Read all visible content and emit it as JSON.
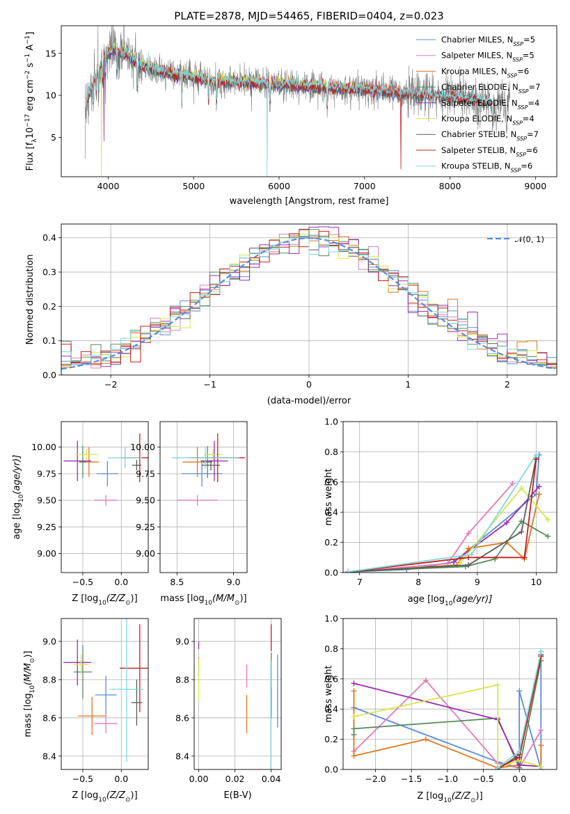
{
  "colors": {
    "Chabrier MILES": "#5b8bd9",
    "Salpeter MILES": "#e07bb8",
    "Kroupa MILES": "#e0761f",
    "Chabrier ELODIE": "#568a5a",
    "Salpeter ELODIE": "#9b2cb0",
    "Kroupa ELODIE": "#d6e64a",
    "Chabrier STELIB": "#5a5a5a",
    "Salpeter STELIB": "#c41e1e",
    "Kroupa STELIB": "#7fd8dc",
    "grid": "#b0b0b0",
    "normal_curve": "#5b8bd9"
  },
  "chart_data": [
    {
      "id": "spectrum",
      "type": "line",
      "title": "PLATE=2878, MJD=54465, FIBERID=0404, z=0.023",
      "xlabel": "wavelength [Angstrom, rest frame]",
      "ylabel": "Flux [f",
      "ylabel_full": "Flux [fλ10⁻¹⁷ erg cm⁻² s⁻¹ A⁻¹]",
      "xlim": [
        3450,
        9250
      ],
      "ylim": [
        0.3,
        18.3
      ],
      "xticks": [
        4000,
        5000,
        6000,
        7000,
        8000,
        9000
      ],
      "yticks": [
        5,
        10,
        15
      ],
      "legend_position": "top-right",
      "legend": [
        {
          "label": "Chabrier MILES, N",
          "sub": "SSP",
          "eq": "=5"
        },
        {
          "label": "Salpeter MILES, N",
          "sub": "SSP",
          "eq": "=5"
        },
        {
          "label": "Kroupa MILES, N",
          "sub": "SSP",
          "eq": "=6"
        },
        {
          "label": "Chabrier ELODIE, N",
          "sub": "SSP",
          "eq": "=7"
        },
        {
          "label": "Salpeter ELODIE, N",
          "sub": "SSP",
          "eq": "=4"
        },
        {
          "label": "Kroupa ELODIE, N",
          "sub": "SSP",
          "eq": "=4"
        },
        {
          "label": "Chabrier STELIB, N",
          "sub": "SSP",
          "eq": "=7"
        },
        {
          "label": "Salpeter STELIB, N",
          "sub": "SSP",
          "eq": "=6"
        },
        {
          "label": "Kroupa STELIB, N",
          "sub": "SSP",
          "eq": "=6"
        }
      ],
      "continuum": [
        [
          3750,
          9.5
        ],
        [
          3850,
          12.5
        ],
        [
          3950,
          14.5
        ],
        [
          4050,
          15.5
        ],
        [
          4200,
          15.0
        ],
        [
          4400,
          13.5
        ],
        [
          4600,
          13.0
        ],
        [
          4800,
          12.5
        ],
        [
          5000,
          12.2
        ],
        [
          5200,
          11.8
        ],
        [
          5500,
          11.6
        ],
        [
          6000,
          11.4
        ],
        [
          6500,
          11.0
        ],
        [
          7000,
          10.7
        ],
        [
          7500,
          10.3
        ],
        [
          8000,
          9.8
        ],
        [
          8500,
          9.2
        ],
        [
          8700,
          9.0
        ]
      ],
      "observed_range": [
        3730,
        8700
      ],
      "model_ranges": {
        "MILES": [
          3750,
          7400
        ],
        "ELODIE": [
          3900,
          6800
        ],
        "STELIB": [
          3750,
          8500
        ]
      },
      "absorption_features": [
        3820,
        3860,
        3890,
        3934,
        3968,
        4102,
        4340,
        4861,
        5175,
        5269,
        5893,
        6563,
        8498,
        8542,
        8662
      ],
      "model_dips": [
        {
          "series": "Kroupa MILES",
          "x": 7420,
          "to": 0.3
        },
        {
          "series": "Salpeter STELIB",
          "x": 7425,
          "to": 1.2
        },
        {
          "series": "Kroupa ELODIE",
          "x": 6810,
          "to": 0.3
        },
        {
          "series": "Kroupa ELODIE",
          "x": 3920,
          "to": 0.3
        },
        {
          "series": "Kroupa STELIB",
          "x": 5860,
          "to": 0.3
        },
        {
          "series": "Salpeter ELODIE",
          "x": 3950,
          "to": 4.5
        }
      ]
    },
    {
      "id": "residuals",
      "type": "histogram",
      "xlabel": "(data-model)/error",
      "ylabel": "Normed distribution",
      "xlim": [
        -2.5,
        2.5
      ],
      "ylim": [
        0,
        0.44
      ],
      "xticks": [
        -2,
        -1,
        0,
        1,
        2
      ],
      "yticks": [
        0.0,
        0.1,
        0.2,
        0.3,
        0.4
      ],
      "bin_width": 0.1,
      "legend_label": "𝒩(0, 1)",
      "legend_position": "top-right"
    },
    {
      "id": "age-vs-Z",
      "type": "scatter",
      "xlabel": "Z [log",
      "xlabel_sub": "10",
      "xlabel_rest": "(Z/Z",
      "xlabel_end": ")]",
      "ylabel": "age  [log",
      "ylabel_sub": "10",
      "ylabel_rest": "(age/yr)]",
      "xlim": [
        -0.78,
        0.35
      ],
      "ylim": [
        8.82,
        10.24
      ],
      "xticks": [
        -0.5,
        0.0
      ],
      "yticks": [
        9.0,
        9.25,
        9.5,
        9.75,
        10.0
      ],
      "points": [
        {
          "series": "Chabrier MILES",
          "x": -0.18,
          "y": 9.75,
          "xerr": 0.14,
          "yerr": 0.12
        },
        {
          "series": "Salpeter MILES",
          "x": -0.2,
          "y": 9.5,
          "xerr": 0.15,
          "yerr": 0.05
        },
        {
          "series": "Kroupa MILES",
          "x": -0.42,
          "y": 9.86,
          "xerr": 0.13,
          "yerr": 0.14
        },
        {
          "series": "Chabrier ELODIE",
          "x": -0.5,
          "y": 9.86,
          "xerr": 0.04,
          "yerr": 0.15
        },
        {
          "series": "Salpeter ELODIE",
          "x": -0.57,
          "y": 9.87,
          "xerr": 0.18,
          "yerr": 0.19
        },
        {
          "series": "Kroupa ELODIE",
          "x": -0.45,
          "y": 9.93,
          "xerr": 0.15,
          "yerr": 0.05
        },
        {
          "series": "Chabrier STELIB",
          "x": 0.2,
          "y": 9.83,
          "xerr": 0.06,
          "yerr": 0.05
        },
        {
          "series": "Salpeter STELIB",
          "x": 0.24,
          "y": 9.9,
          "xerr": 0.24,
          "yerr": 0.23
        },
        {
          "series": "Kroupa STELIB",
          "x": 0.05,
          "y": 9.9,
          "xerr": 0.22,
          "yerr": 0.1
        }
      ]
    },
    {
      "id": "age-vs-mass",
      "type": "scatter",
      "xlabel": "mass [log",
      "xlabel_sub": "10",
      "xlabel_rest": "(M/M",
      "xlabel_end": ")]",
      "xlim": [
        8.35,
        9.12
      ],
      "ylim": [
        8.82,
        10.24
      ],
      "xticks": [
        8.5,
        9.0
      ],
      "yticks": [
        9.0,
        9.25,
        9.5,
        9.75,
        10.0
      ],
      "points": [
        {
          "series": "Chabrier MILES",
          "x": 8.72,
          "y": 9.75,
          "xerr": 0.18,
          "yerr": 0.12
        },
        {
          "series": "Salpeter MILES",
          "x": 8.68,
          "y": 9.5,
          "xerr": 0.18,
          "yerr": 0.05
        },
        {
          "series": "Kroupa MILES",
          "x": 8.68,
          "y": 9.86,
          "xerr": 0.13,
          "yerr": 0.14
        },
        {
          "series": "Chabrier ELODIE",
          "x": 8.77,
          "y": 9.86,
          "xerr": 0.04,
          "yerr": 0.15
        },
        {
          "series": "Salpeter ELODIE",
          "x": 8.83,
          "y": 9.87,
          "xerr": 0.12,
          "yerr": 0.19
        },
        {
          "series": "Kroupa ELODIE",
          "x": 8.82,
          "y": 9.93,
          "xerr": 0.08,
          "yerr": 0.05
        },
        {
          "series": "Chabrier STELIB",
          "x": 8.8,
          "y": 9.83,
          "xerr": 0.08,
          "yerr": 0.05
        },
        {
          "series": "Salpeter STELIB",
          "x": 8.86,
          "y": 9.9,
          "xerr": 0.24,
          "yerr": 0.23
        },
        {
          "series": "Kroupa STELIB",
          "x": 8.75,
          "y": 9.9,
          "xerr": 0.3,
          "yerr": 0.1
        }
      ]
    },
    {
      "id": "massweight-vs-age",
      "type": "line",
      "xlabel": "age  [log",
      "xlabel_sub": "10",
      "xlabel_rest": "(age/yr)]",
      "ylabel": "mass weight",
      "xlim": [
        6.72,
        10.35
      ],
      "ylim": [
        0,
        1.0
      ],
      "xticks": [
        7,
        8,
        9,
        10
      ],
      "yticks": [
        0.0,
        0.2,
        0.4,
        0.6,
        0.8,
        1.0
      ],
      "series": [
        {
          "name": "Chabrier MILES",
          "x": [
            6.8,
            7.8,
            8.6,
            10.0,
            10.05
          ],
          "y": [
            0.005,
            0.02,
            0.07,
            0.52,
            0.78
          ]
        },
        {
          "name": "Salpeter MILES",
          "x": [
            6.8,
            8.5,
            8.85,
            9.6
          ],
          "y": [
            0.005,
            0.06,
            0.26,
            0.59
          ]
        },
        {
          "name": "Kroupa MILES",
          "x": [
            6.8,
            8.65,
            8.85,
            9.5,
            9.8,
            10.05
          ],
          "y": [
            0.005,
            0.05,
            0.16,
            0.2,
            0.09,
            0.52
          ]
        },
        {
          "name": "Chabrier ELODIE",
          "x": [
            6.8,
            8.8,
            9.3,
            9.75,
            10.2
          ],
          "y": [
            0.005,
            0.04,
            0.09,
            0.34,
            0.24
          ]
        },
        {
          "name": "Salpeter ELODIE",
          "x": [
            8.6,
            9.5,
            10.05
          ],
          "y": [
            0.07,
            0.33,
            0.57
          ]
        },
        {
          "name": "Kroupa ELODIE",
          "x": [
            8.7,
            9.75,
            10.2
          ],
          "y": [
            0.06,
            0.56,
            0.35
          ]
        },
        {
          "name": "Chabrier STELIB",
          "x": [
            6.8,
            8.85,
            9.75,
            10.0
          ],
          "y": [
            0.005,
            0.05,
            0.27,
            0.76
          ]
        },
        {
          "name": "Salpeter STELIB",
          "x": [
            6.8,
            8.85,
            9.8,
            10.0
          ],
          "y": [
            0.005,
            0.1,
            0.1,
            0.75
          ]
        },
        {
          "name": "Kroupa STELIB",
          "x": [
            6.8,
            8.9,
            10.0
          ],
          "y": [
            0.005,
            0.12,
            0.78
          ]
        }
      ]
    },
    {
      "id": "mass-vs-Z",
      "type": "scatter",
      "xlabel": "Z [log",
      "xlabel_sub": "10",
      "xlabel_rest": "(Z/Z",
      "xlabel_end": ")]",
      "ylabel": "mass [log",
      "ylabel_sub": "10",
      "ylabel_rest": "(M/M",
      "ylabel_end": ")]",
      "xlim": [
        -0.78,
        0.35
      ],
      "ylim": [
        8.33,
        9.12
      ],
      "xticks": [
        -0.5,
        0.0
      ],
      "yticks": [
        8.4,
        8.6,
        8.8,
        9.0
      ],
      "points": [
        {
          "series": "Chabrier MILES",
          "x": -0.2,
          "y": 8.72,
          "xerr": 0.14,
          "yerr": 0.1
        },
        {
          "series": "Salpeter MILES",
          "x": -0.2,
          "y": 8.57,
          "xerr": 0.15,
          "yerr": 0.05
        },
        {
          "series": "Kroupa MILES",
          "x": -0.38,
          "y": 8.61,
          "xerr": 0.18,
          "yerr": 0.1
        },
        {
          "series": "Chabrier ELODIE",
          "x": -0.5,
          "y": 8.84,
          "xerr": 0.12,
          "yerr": 0.14
        },
        {
          "series": "Salpeter ELODIE",
          "x": -0.57,
          "y": 8.89,
          "xerr": 0.18,
          "yerr": 0.12
        },
        {
          "series": "Kroupa ELODIE",
          "x": -0.52,
          "y": 8.88,
          "xerr": 0.1,
          "yerr": 0.05
        },
        {
          "series": "Chabrier STELIB",
          "x": 0.2,
          "y": 8.68,
          "xerr": 0.07,
          "yerr": 0.12
        },
        {
          "series": "Salpeter STELIB",
          "x": 0.24,
          "y": 8.86,
          "xerr": 0.26,
          "yerr": 0.23
        },
        {
          "series": "Kroupa STELIB",
          "x": 0.07,
          "y": 8.75,
          "xerr": 0.22,
          "yerr": 0.38
        }
      ]
    },
    {
      "id": "mass-vs-EBV",
      "type": "scatter",
      "xlabel": "E(B-V)",
      "xlim": [
        -0.0025,
        0.0455
      ],
      "ylim": [
        8.33,
        9.12
      ],
      "xticks": [
        0.0,
        0.02,
        0.04
      ],
      "yticks": [
        8.4,
        8.6,
        8.8,
        9.0
      ],
      "points": [
        {
          "series": "Chabrier MILES",
          "x": 0.0435,
          "y": 8.74,
          "xerr": 0,
          "yerr": 0.19
        },
        {
          "series": "Salpeter MILES",
          "x": 0.0,
          "y": 8.87,
          "xerr": 0,
          "yerr": 0.05
        },
        {
          "series": "Kroupa MILES",
          "x": 0.0265,
          "y": 8.62,
          "xerr": 0,
          "yerr": 0.1
        },
        {
          "series": "Chabrier ELODIE",
          "x": 0.04,
          "y": 8.78,
          "xerr": 0,
          "yerr": 0.16
        },
        {
          "series": "Salpeter ELODIE",
          "x": 0.0,
          "y": 8.98,
          "xerr": 0,
          "yerr": 0.02
        },
        {
          "series": "Kroupa ELODIE",
          "x": 0.0,
          "y": 8.8,
          "xerr": 0,
          "yerr": 0.11
        },
        {
          "series": "Chabrier STELIB",
          "x": 0.04,
          "y": 8.68,
          "xerr": 0,
          "yerr": 0.08
        },
        {
          "series": "Salpeter STELIB",
          "x": 0.04,
          "y": 9.02,
          "xerr": 0,
          "yerr": 0.07
        },
        {
          "series": "Kroupa STELIB",
          "x": 0.0398,
          "y": 8.6,
          "xerr": 0,
          "yerr": 0.3
        },
        {
          "series": "Salpeter MILES",
          "x": 0.0265,
          "y": 8.82,
          "xerr": 0,
          "yerr": 0.06
        }
      ]
    },
    {
      "id": "massweight-vs-Z",
      "type": "line",
      "xlabel": "Z [log",
      "xlabel_sub": "10",
      "xlabel_rest": "(Z/Z",
      "xlabel_end": ")]",
      "ylabel": "mass weight",
      "xlim": [
        -2.45,
        0.52
      ],
      "ylim": [
        0,
        1.0
      ],
      "xticks": [
        -2.0,
        -1.5,
        -1.0,
        -0.5,
        0.0
      ],
      "yticks": [
        0.0,
        0.2,
        0.4,
        0.6,
        0.8,
        1.0
      ],
      "series": [
        {
          "name": "Chabrier MILES",
          "x": [
            -2.3,
            -0.3,
            0.0,
            0.0,
            0.3,
            0.3
          ],
          "y": [
            0.41,
            0.05,
            0.01,
            0.52,
            0.0,
            0.78
          ]
        },
        {
          "name": "Salpeter MILES",
          "x": [
            -2.3,
            -1.3,
            -0.3,
            0.0,
            0.3
          ],
          "y": [
            0.12,
            0.59,
            0.04,
            0.01,
            0.26
          ]
        },
        {
          "name": "Kroupa MILES",
          "x": [
            -2.3,
            -2.3,
            -1.3,
            -0.3,
            0.0,
            0.3,
            0.3
          ],
          "y": [
            0.52,
            0.09,
            0.2,
            0.01,
            0.03,
            0.02,
            0.16
          ]
        },
        {
          "name": "Chabrier ELODIE",
          "x": [
            -2.3,
            -2.3,
            -0.3,
            0.0,
            0.3
          ],
          "y": [
            0.23,
            0.27,
            0.34,
            0.01,
            0.72
          ]
        },
        {
          "name": "Salpeter ELODIE",
          "x": [
            -2.3,
            -0.3,
            0.0,
            0.3
          ],
          "y": [
            0.57,
            0.33,
            0.03,
            0.02
          ]
        },
        {
          "name": "Kroupa ELODIE",
          "x": [
            -2.3,
            -0.3,
            -0.3,
            0.0,
            0.3
          ],
          "y": [
            0.35,
            0.56,
            0.01,
            0.06,
            0.02
          ]
        },
        {
          "name": "Chabrier STELIB",
          "x": [
            -0.3,
            0.0,
            0.3
          ],
          "y": [
            0.0,
            0.1,
            0.76
          ]
        },
        {
          "name": "Salpeter STELIB",
          "x": [
            -0.3,
            0.0,
            0.3
          ],
          "y": [
            0.01,
            0.08,
            0.75
          ]
        },
        {
          "name": "Kroupa STELIB",
          "x": [
            -0.3,
            0.0,
            0.3
          ],
          "y": [
            0.01,
            0.12,
            0.78
          ]
        }
      ]
    }
  ]
}
